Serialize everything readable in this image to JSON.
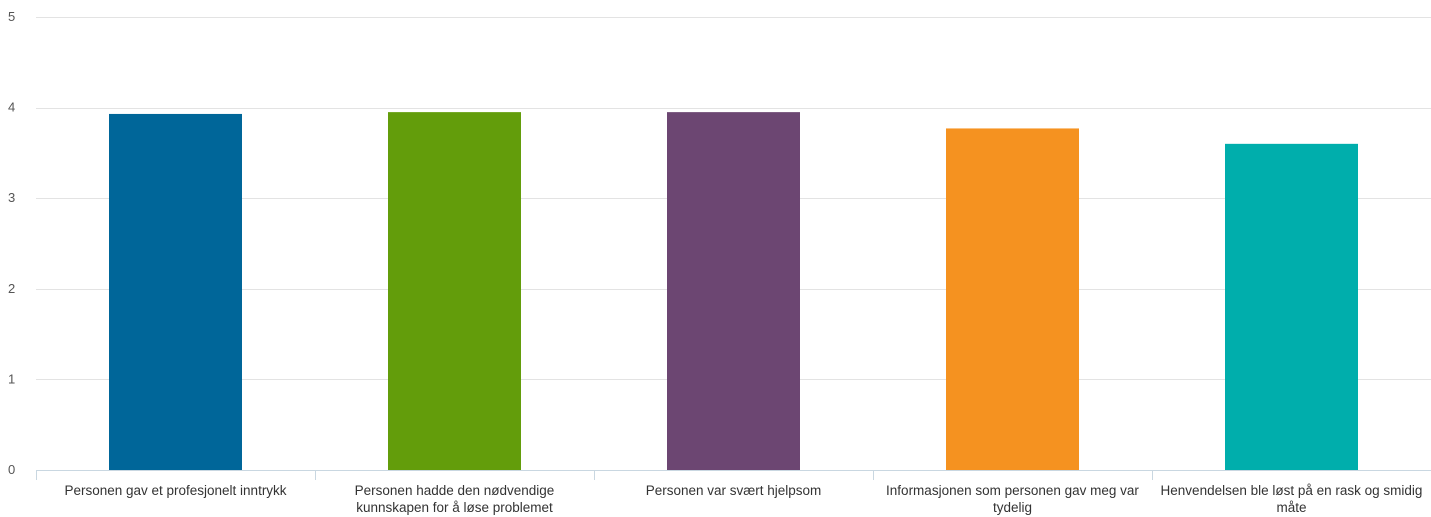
{
  "chart_data": {
    "type": "bar",
    "categories": [
      "Personen gav et profesjonelt inntrykk",
      "Personen hadde den nødvendige kunnskapen for å løse problemet",
      "Personen var svært hjelpsom",
      "Informasjonen som personen gav meg var tydelig",
      "Henvendelsen ble løst på en rask og smidig måte"
    ],
    "values": [
      3.93,
      3.95,
      3.95,
      3.77,
      3.6
    ],
    "colors": [
      "#006699",
      "#639d0b",
      "#6c4672",
      "#f59220",
      "#00aeac"
    ],
    "ylim": [
      0,
      5
    ],
    "yticks": [
      "0",
      "1",
      "2",
      "3",
      "4",
      "5"
    ],
    "grid": true,
    "legend": "none",
    "title": "",
    "xlabel": "",
    "ylabel": ""
  }
}
